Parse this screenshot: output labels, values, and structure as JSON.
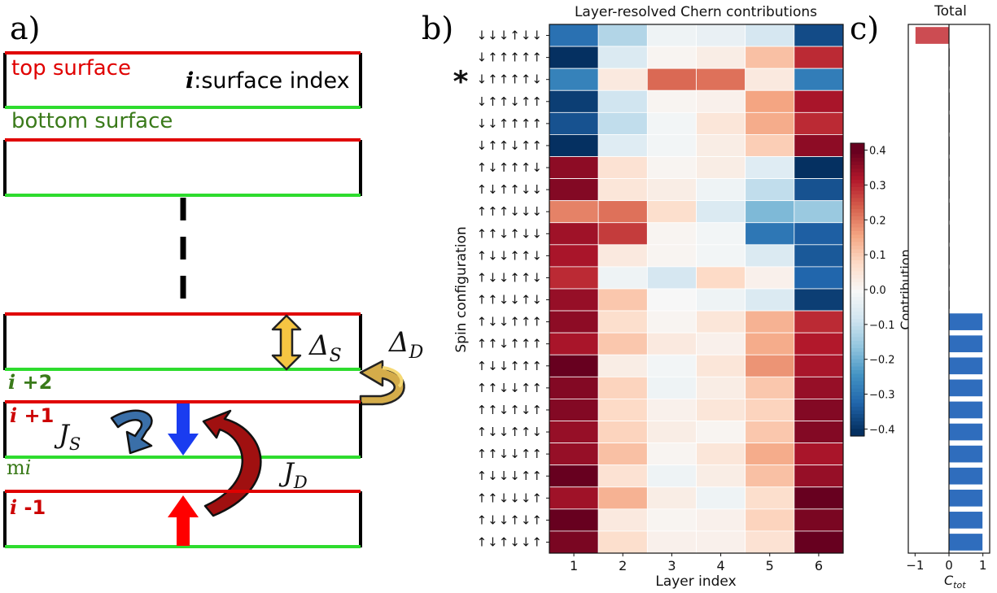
{
  "panels": {
    "a": "a)",
    "b": "b)",
    "c": "c)"
  },
  "schematic": {
    "top_surface": "top surface",
    "bottom_surface": "bottom surface",
    "index_symbol": "i",
    "index_label": ":surface index",
    "delta_s_base": "Δ",
    "delta_s_sub": "S",
    "delta_d_base": "Δ",
    "delta_d_sub": "D",
    "j_s_base": "J",
    "j_s_sub": "S",
    "j_d_base": "J",
    "j_d_sub": "D",
    "layer_i_plus_2": {
      "sym": "i",
      "suffix": " +2"
    },
    "layer_i_plus_1": {
      "sym": "i",
      "suffix": " +1"
    },
    "layer_i_minus_1": {
      "sym": "i",
      "suffix": " -1"
    },
    "m_i": {
      "base": "m",
      "sub": "i"
    },
    "colors": {
      "top": "#e00000",
      "bottom": "#2edc2e",
      "green_text": "#3a7a1a",
      "gold": "#f5c542",
      "blue": "#1a3cf0",
      "red_arrow": "#ff0000",
      "dark_red": "#a01010",
      "steel_blue": "#3a6fa8"
    }
  },
  "marker": "*",
  "chart_data": [
    {
      "type": "heatmap",
      "title": "Layer-resolved Chern contributions",
      "xlabel": "Layer index",
      "ylabel": "Spin configuration",
      "x_ticks": [
        "1",
        "2",
        "3",
        "4",
        "5",
        "6"
      ],
      "rows": [
        "↓↓↓↑↓↓",
        "↓↑↑↑↑↑",
        "↓↑↑↑↑↓",
        "↓↑↑↓↑↑",
        "↓↓↑↑↑↑",
        "↓↑↑↓↑↑",
        "↑↓↑↑↑↓",
        "↑↓↑↑↓↓",
        "↑↑↑↓↓↓",
        "↑↑↓↑↓↓",
        "↑↓↓↑↑↓",
        "↑↓↓↑↑↓",
        "↑↑↓↓↑↓",
        "↑↓↓↑↑↑",
        "↑↑↓↑↑↑",
        "↑↓↓↑↑↑",
        "↑↑↓↓↑↑",
        "↑↑↓↑↓↑",
        "↑↓↓↑↑↓",
        "↑↑↓↓↑↑",
        "↑↓↓↓↑↑",
        "↑↑↓↓↓↑",
        "↑↓↓↑↓↑",
        "↑↓↑↓↓↑"
      ],
      "starred_row": 2,
      "values": [
        [
          -0.3,
          -0.12,
          -0.02,
          -0.03,
          -0.07,
          -0.36
        ],
        [
          -0.42,
          -0.06,
          0.01,
          0.03,
          0.12,
          0.3
        ],
        [
          -0.27,
          0.04,
          0.23,
          0.22,
          0.04,
          -0.28
        ],
        [
          -0.38,
          -0.08,
          0.01,
          0.02,
          0.16,
          0.33
        ],
        [
          -0.35,
          -0.1,
          -0.01,
          0.05,
          0.15,
          0.3
        ],
        [
          -0.4,
          -0.05,
          -0.01,
          0.03,
          0.1,
          0.36
        ],
        [
          0.36,
          0.06,
          0.01,
          0.03,
          -0.05,
          -0.4
        ],
        [
          0.37,
          0.05,
          0.03,
          -0.02,
          -0.1,
          -0.35
        ],
        [
          0.2,
          0.22,
          0.07,
          -0.06,
          -0.18,
          -0.15
        ],
        [
          0.34,
          0.28,
          0.01,
          -0.01,
          -0.29,
          -0.33
        ],
        [
          0.33,
          0.04,
          0.01,
          -0.01,
          -0.06,
          -0.34
        ],
        [
          0.3,
          -0.02,
          -0.07,
          0.08,
          0.02,
          -0.32
        ],
        [
          0.35,
          0.11,
          0.0,
          -0.02,
          -0.06,
          -0.38
        ],
        [
          0.36,
          0.07,
          0.01,
          0.05,
          0.14,
          0.3
        ],
        [
          0.33,
          0.11,
          0.04,
          0.02,
          0.15,
          0.32
        ],
        [
          0.4,
          0.03,
          -0.01,
          0.05,
          0.18,
          0.33
        ],
        [
          0.37,
          0.09,
          -0.02,
          0.03,
          0.11,
          0.35
        ],
        [
          0.37,
          0.08,
          0.02,
          0.05,
          0.09,
          0.37
        ],
        [
          0.35,
          0.09,
          0.03,
          0.01,
          0.11,
          0.37
        ],
        [
          0.35,
          0.12,
          0.01,
          0.05,
          0.15,
          0.33
        ],
        [
          0.42,
          0.06,
          -0.02,
          0.03,
          0.12,
          0.35
        ],
        [
          0.34,
          0.14,
          0.03,
          -0.02,
          0.07,
          0.42
        ],
        [
          0.4,
          0.04,
          0.01,
          0.02,
          0.09,
          0.38
        ],
        [
          0.38,
          0.07,
          0.02,
          0.02,
          0.06,
          0.41
        ]
      ],
      "vmin": -0.4,
      "vmax": 0.4
    },
    {
      "type": "colorbar",
      "label": "Contribution",
      "range": [
        -0.42,
        0.42
      ],
      "ticks": [
        0.4,
        0.3,
        0.2,
        0.1,
        0.0,
        -0.1,
        -0.2,
        -0.3,
        -0.4
      ],
      "tick_labels": [
        "0.4",
        "0.3",
        "0.2",
        "0.1",
        "0.0",
        "−0.1",
        "−0.2",
        "−0.3",
        "−0.4"
      ]
    },
    {
      "type": "bar",
      "orientation": "horizontal",
      "title": "Total",
      "xlabel_base": "C",
      "xlabel_sub": "tot",
      "xlim": [
        -1.2,
        1.2
      ],
      "x_ticks": [
        "−1",
        "0",
        "1"
      ],
      "x_tick_values": [
        -1,
        0,
        1
      ],
      "values": [
        -1,
        0,
        0,
        0,
        0,
        0,
        0,
        0,
        0,
        0,
        0,
        0,
        0,
        1,
        1,
        1,
        1,
        1,
        1,
        1,
        1,
        1,
        1,
        1
      ],
      "colors": {
        "negative": "#cc4c52",
        "positive": "#2f6dbd"
      }
    }
  ]
}
